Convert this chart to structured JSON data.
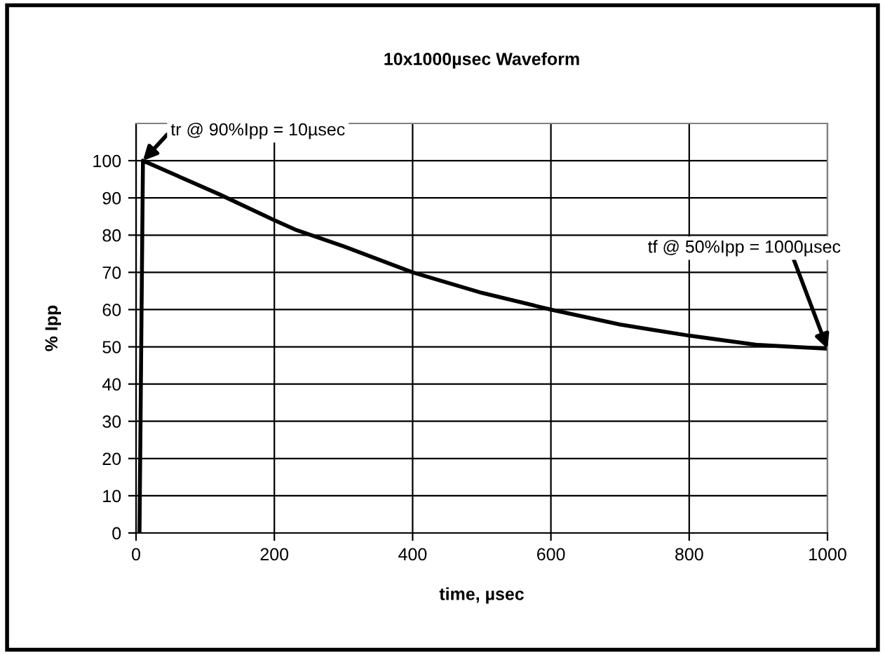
{
  "chart_data": {
    "type": "line",
    "title": "10x1000µsec Waveform",
    "xlabel": "time, µsec",
    "ylabel": "% Ipp",
    "x": [
      5,
      10,
      120,
      200,
      230,
      300,
      400,
      500,
      600,
      700,
      750,
      800,
      900,
      1000
    ],
    "series": [
      {
        "color": "#000000",
        "values": [
          0,
          100,
          91,
          84,
          81.5,
          77,
          70,
          64.5,
          60,
          56,
          54.5,
          53,
          50.5,
          49.5
        ]
      }
    ],
    "xlim": [
      0,
      1000
    ],
    "xticks": [
      0,
      200,
      400,
      600,
      800,
      1000
    ],
    "ylim": [
      0,
      110
    ],
    "yticks": [
      0,
      10,
      20,
      30,
      40,
      50,
      60,
      70,
      80,
      90,
      100
    ],
    "grid": true,
    "legend": false,
    "marker": "none",
    "line_style": "solid",
    "annotations": [
      {
        "text": "tr @ 90%Ipp = 10µsec",
        "x": 10,
        "y": 100
      },
      {
        "text": "tf @ 50%Ipp = 1000µsec",
        "x": 1000,
        "y": 49.5
      }
    ]
  }
}
